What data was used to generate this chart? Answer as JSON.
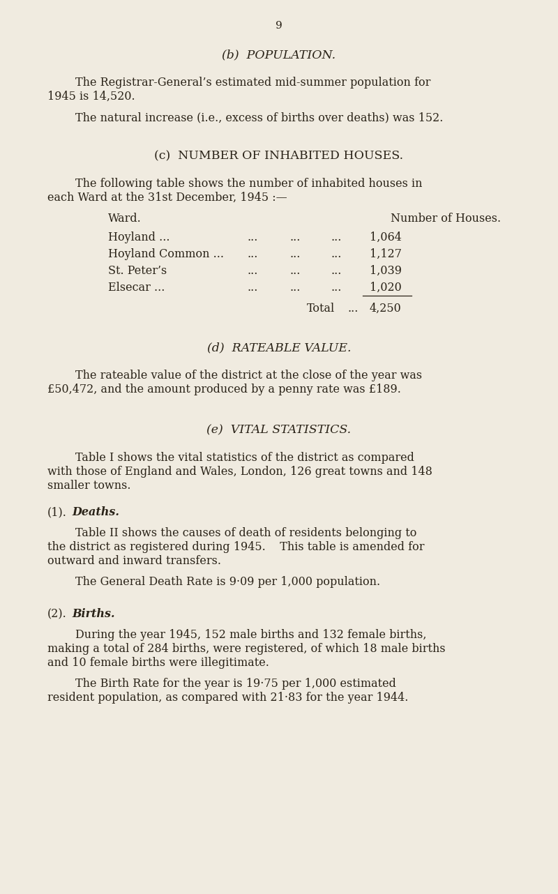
{
  "background_color": "#f0ebe0",
  "text_color": "#2a2318",
  "page_number": "9",
  "section_b_title": "(b)  POPULATION.",
  "section_b_para1_l1": "The Registrar-General’s estimated mid-summer population for",
  "section_b_para1_l2": "1945 is 14,520.",
  "section_b_para2": "The natural increase (i.e., excess of births over deaths) was 152.",
  "section_c_title": "(c)  NUMBER OF INHABITED HOUSES.",
  "section_c_intro_l1": "The following table shows the number of inhabited houses in",
  "section_c_intro_l2": "each Ward at the 31st December, 1945 :—",
  "table_col1_header": "Ward.",
  "table_col2_header": "Number of Houses.",
  "table_ward_col": [
    "Hoyland ...",
    "Hoyland Common ...",
    "St. Peter’s",
    "Elsecar ..."
  ],
  "table_dots1": [
    "...",
    "...",
    "...",
    "..."
  ],
  "table_dots2": [
    "...",
    "...",
    "...",
    "..."
  ],
  "table_dots3": [
    "...",
    "...",
    "...",
    "..."
  ],
  "table_values": [
    "1,064",
    "1,127",
    "1,039",
    "1,020"
  ],
  "table_total_label": "Total",
  "table_total_dots": "...",
  "table_total_value": "4,250",
  "section_d_title": "(d)  RATEABLE VALUE.",
  "section_d_para_l1": "The rateable value of the district at the close of the year was",
  "section_d_para_l2": "£50,472, and the amount produced by a penny rate was £189.",
  "section_e_title": "(e)  VITAL STATISTICS.",
  "section_e_para_l1": "Table I shows the vital statistics of the district as compared",
  "section_e_para_l2": "with those of England and Wales, London, 126 great towns and 148",
  "section_e_para_l3": "smaller towns.",
  "section_1_label": "(1).",
  "section_1_title": "Deaths.",
  "section_1_para1_l1": "Table II shows the causes of death of residents belonging to",
  "section_1_para1_l2": "the district as registered during 1945.    This table is amended for",
  "section_1_para1_l3": "outward and inward transfers.",
  "section_1_para2": "The General Death Rate is 9·09 per 1,000 population.",
  "section_2_label": "(2).",
  "section_2_title": "Births.",
  "section_2_para1_l1": "During the year 1945, 152 male births and 132 female births,",
  "section_2_para1_l2": "making a total of 284 births, were registered, of which 18 male births",
  "section_2_para1_l3": "and 10 female births were illegitimate.",
  "section_2_para2_l1": "The Birth Rate for the year is 19·75 per 1,000 estimated",
  "section_2_para2_l2": "resident population, as compared with 21·83 for the year 1944."
}
